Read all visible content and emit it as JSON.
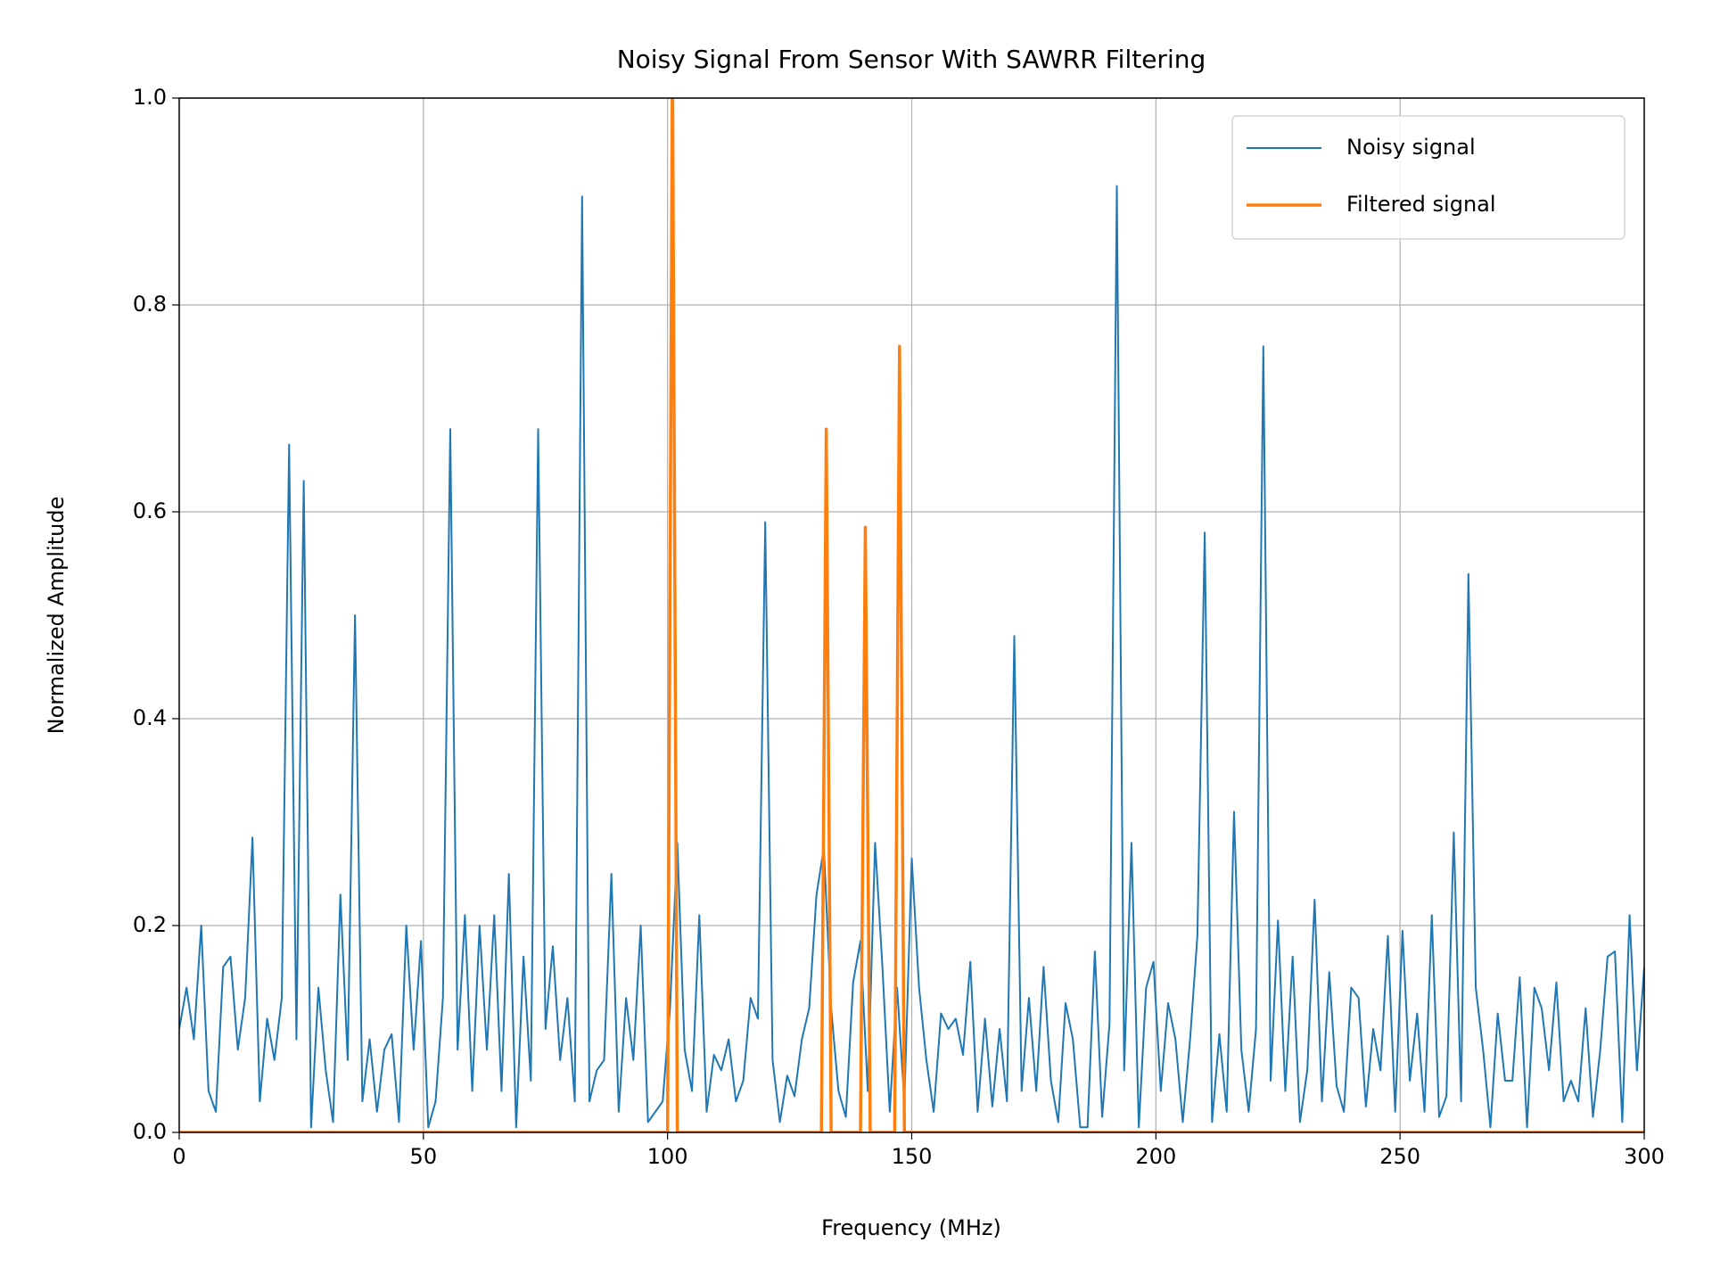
{
  "chart_data": {
    "type": "line",
    "title": "Noisy Signal From Sensor With SAWRR Filtering",
    "xlabel": "Frequency (MHz)",
    "ylabel": "Normalized Amplitude",
    "xlim": [
      0,
      300
    ],
    "ylim": [
      0,
      1
    ],
    "xticks": [
      0,
      50,
      100,
      150,
      200,
      250,
      300
    ],
    "yticks": [
      {
        "value": 0,
        "label": "0.0"
      },
      0.2,
      0.4,
      0.6,
      0.8,
      {
        "value": 1,
        "label": "1.0"
      }
    ],
    "grid": true,
    "legend": "upper right",
    "series": [
      {
        "name": "Noisy signal",
        "color": "#1f77b4",
        "x": [
          0,
          1.5,
          3,
          4.5,
          6,
          7.5,
          9,
          10.5,
          12,
          13.5,
          15,
          16.5,
          18,
          19.5,
          21,
          22.5,
          24,
          25.5,
          27,
          28.5,
          30,
          31.5,
          33,
          34.5,
          36,
          37.5,
          39,
          40.5,
          42,
          43.5,
          45,
          46.5,
          48,
          49.5,
          51,
          52.5,
          54,
          55.5,
          57,
          58.5,
          60,
          61.5,
          63,
          64.5,
          66,
          67.5,
          69,
          70.5,
          72,
          73.5,
          75,
          76.5,
          78,
          79.5,
          81,
          82.5,
          84,
          85.5,
          87,
          88.5,
          90,
          91.5,
          93,
          94.5,
          96,
          97.5,
          99,
          100.5,
          102,
          103.5,
          105,
          106.5,
          108,
          109.5,
          111,
          112.5,
          114,
          115.5,
          117,
          118.5,
          120,
          121.5,
          123,
          124.5,
          126,
          127.5,
          129,
          130.5,
          132,
          133.5,
          135,
          136.5,
          138,
          139.5,
          141,
          142.5,
          144,
          145.5,
          147,
          148.5,
          150,
          151.5,
          153,
          154.5,
          156,
          157.5,
          159,
          160.5,
          162,
          163.5,
          165,
          166.5,
          168,
          169.5,
          171,
          172.5,
          174,
          175.5,
          177,
          178.5,
          180,
          181.5,
          183,
          184.5,
          186,
          187.5,
          189,
          190.5,
          192,
          193.5,
          195,
          196.5,
          198,
          199.5,
          201,
          202.5,
          204,
          205.5,
          207,
          208.5,
          210,
          211.5,
          213,
          214.5,
          216,
          217.5,
          219,
          220.5,
          222,
          223.5,
          225,
          226.5,
          228,
          229.5,
          231,
          232.5,
          234,
          235.5,
          237,
          238.5,
          240,
          241.5,
          243,
          244.5,
          246,
          247.5,
          249,
          250.5,
          252,
          253.5,
          255,
          256.5,
          258,
          259.5,
          261,
          262.5,
          264,
          265.5,
          267,
          268.5,
          270,
          271.5,
          273,
          274.5,
          276,
          277.5,
          279,
          280.5,
          282,
          283.5,
          285,
          286.5,
          288,
          289.5,
          291,
          292.5,
          294,
          295.5,
          297,
          298.5,
          300
        ],
        "values": [
          0.1,
          0.14,
          0.09,
          0.2,
          0.04,
          0.02,
          0.16,
          0.17,
          0.08,
          0.13,
          0.285,
          0.03,
          0.11,
          0.07,
          0.13,
          0.665,
          0.09,
          0.63,
          0.005,
          0.14,
          0.06,
          0.01,
          0.23,
          0.07,
          0.5,
          0.03,
          0.09,
          0.02,
          0.08,
          0.095,
          0.01,
          0.2,
          0.08,
          0.185,
          0.005,
          0.03,
          0.13,
          0.68,
          0.08,
          0.21,
          0.04,
          0.2,
          0.08,
          0.21,
          0.04,
          0.25,
          0.005,
          0.17,
          0.05,
          0.68,
          0.1,
          0.18,
          0.07,
          0.13,
          0.03,
          0.905,
          0.03,
          0.06,
          0.07,
          0.25,
          0.02,
          0.13,
          0.07,
          0.2,
          0.01,
          0.02,
          0.03,
          0.12,
          0.28,
          0.08,
          0.04,
          0.21,
          0.02,
          0.075,
          0.06,
          0.09,
          0.03,
          0.05,
          0.13,
          0.11,
          0.59,
          0.07,
          0.01,
          0.055,
          0.035,
          0.09,
          0.12,
          0.23,
          0.275,
          0.12,
          0.04,
          0.015,
          0.145,
          0.185,
          0.04,
          0.28,
          0.16,
          0.02,
          0.14,
          0.03,
          0.265,
          0.14,
          0.07,
          0.02,
          0.115,
          0.1,
          0.11,
          0.075,
          0.165,
          0.02,
          0.11,
          0.025,
          0.1,
          0.03,
          0.48,
          0.04,
          0.13,
          0.04,
          0.16,
          0.05,
          0.01,
          0.125,
          0.09,
          0.005,
          0.005,
          0.175,
          0.015,
          0.105,
          0.915,
          0.06,
          0.28,
          0.005,
          0.14,
          0.165,
          0.04,
          0.125,
          0.09,
          0.01,
          0.09,
          0.19,
          0.58,
          0.01,
          0.095,
          0.02,
          0.31,
          0.08,
          0.02,
          0.1,
          0.76,
          0.05,
          0.205,
          0.04,
          0.17,
          0.01,
          0.06,
          0.225,
          0.03,
          0.155,
          0.045,
          0.02,
          0.14,
          0.13,
          0.025,
          0.1,
          0.06,
          0.19,
          0.02,
          0.195,
          0.05,
          0.115,
          0.02,
          0.21,
          0.015,
          0.035,
          0.29,
          0.03,
          0.54,
          0.14,
          0.08,
          0.005,
          0.115,
          0.05,
          0.05,
          0.15,
          0.005,
          0.14,
          0.12,
          0.06,
          0.145,
          0.03,
          0.05,
          0.03,
          0.12,
          0.015,
          0.08,
          0.17,
          0.175,
          0.01,
          0.21,
          0.06,
          0.16
        ]
      },
      {
        "name": "Filtered signal",
        "color": "#ff7f0e",
        "x": [
          0,
          100,
          101,
          102,
          131.5,
          132.5,
          133.5,
          139.5,
          140.5,
          141.5,
          146.5,
          147.5,
          148.5,
          300
        ],
        "values": [
          0,
          0,
          1.05,
          0,
          0,
          0.68,
          0,
          0,
          0.585,
          0,
          0,
          0.76,
          0,
          0
        ]
      }
    ]
  }
}
